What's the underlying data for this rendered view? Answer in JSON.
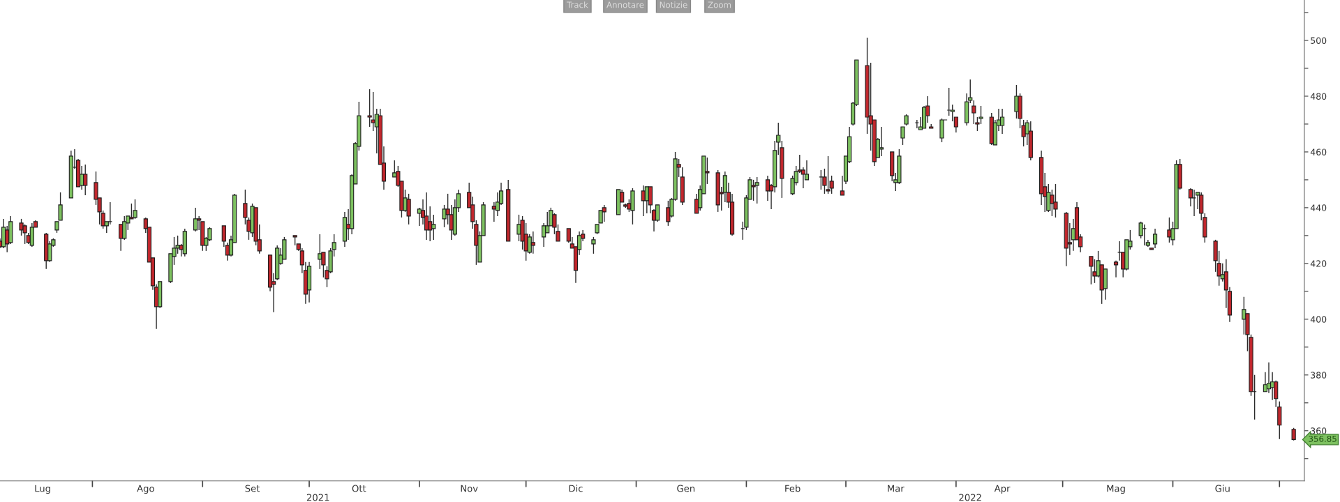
{
  "chart_data": {
    "type": "candlestick",
    "x": [
      "2021-07-06",
      "2021-07-07",
      "2021-07-08",
      "2021-07-09",
      "2021-07-12",
      "2021-07-13",
      "2021-07-14",
      "2021-07-15",
      "2021-07-16",
      "2021-07-19",
      "2021-07-20",
      "2021-07-21",
      "2021-07-22",
      "2021-07-23",
      "2021-07-26",
      "2021-07-27",
      "2021-07-28",
      "2021-07-29",
      "2021-07-30",
      "2021-08-02",
      "2021-08-03",
      "2021-08-04",
      "2021-08-05",
      "2021-08-06",
      "2021-08-09",
      "2021-08-10",
      "2021-08-11",
      "2021-08-12",
      "2021-08-13",
      "2021-08-16",
      "2021-08-17",
      "2021-08-18",
      "2021-08-19",
      "2021-08-20",
      "2021-08-23",
      "2021-08-24",
      "2021-08-25",
      "2021-08-26",
      "2021-08-27",
      "2021-08-30",
      "2021-08-31",
      "2021-09-01",
      "2021-09-02",
      "2021-09-03",
      "2021-09-07",
      "2021-09-08",
      "2021-09-09",
      "2021-09-10",
      "2021-09-13",
      "2021-09-14",
      "2021-09-15",
      "2021-09-16",
      "2021-09-17",
      "2021-09-20",
      "2021-09-21",
      "2021-09-22",
      "2021-09-23",
      "2021-09-24",
      "2021-09-27",
      "2021-09-28",
      "2021-09-29",
      "2021-09-30",
      "2021-10-01",
      "2021-10-04",
      "2021-10-05",
      "2021-10-06",
      "2021-10-07",
      "2021-10-08",
      "2021-10-11",
      "2021-10-12",
      "2021-10-13",
      "2021-10-14",
      "2021-10-15",
      "2021-10-18",
      "2021-10-19",
      "2021-10-20",
      "2021-10-21",
      "2021-10-22",
      "2021-10-25",
      "2021-10-26",
      "2021-10-27",
      "2021-10-28",
      "2021-10-29",
      "2021-11-01",
      "2021-11-02",
      "2021-11-03",
      "2021-11-04",
      "2021-11-05",
      "2021-11-08",
      "2021-11-09",
      "2021-11-10",
      "2021-11-11",
      "2021-11-12",
      "2021-11-15",
      "2021-11-16",
      "2021-11-17",
      "2021-11-18",
      "2021-11-19",
      "2021-11-22",
      "2021-11-23",
      "2021-11-24",
      "2021-11-26",
      "2021-11-29",
      "2021-11-30",
      "2021-12-01",
      "2021-12-02",
      "2021-12-03",
      "2021-12-06",
      "2021-12-07",
      "2021-12-08",
      "2021-12-09",
      "2021-12-10",
      "2021-12-13",
      "2021-12-14",
      "2021-12-15",
      "2021-12-16",
      "2021-12-17",
      "2021-12-20",
      "2021-12-21",
      "2021-12-22",
      "2021-12-23",
      "2021-12-27",
      "2021-12-28",
      "2021-12-29",
      "2021-12-30",
      "2021-12-31",
      "2022-01-03",
      "2022-01-04",
      "2022-01-05",
      "2022-01-06",
      "2022-01-07",
      "2022-01-10",
      "2022-01-11",
      "2022-01-12",
      "2022-01-13",
      "2022-01-14",
      "2022-01-18",
      "2022-01-19",
      "2022-01-20",
      "2022-01-21",
      "2022-01-24",
      "2022-01-25",
      "2022-01-26",
      "2022-01-27",
      "2022-01-28",
      "2022-01-31",
      "2022-02-01",
      "2022-02-02",
      "2022-02-03",
      "2022-02-04",
      "2022-02-07",
      "2022-02-08",
      "2022-02-09",
      "2022-02-10",
      "2022-02-11",
      "2022-02-14",
      "2022-02-15",
      "2022-02-16",
      "2022-02-17",
      "2022-02-18",
      "2022-02-22",
      "2022-02-23",
      "2022-02-24",
      "2022-02-25",
      "2022-02-28",
      "2022-03-01",
      "2022-03-02",
      "2022-03-03",
      "2022-03-04",
      "2022-03-07",
      "2022-03-08",
      "2022-03-09",
      "2022-03-10",
      "2022-03-11",
      "2022-03-14",
      "2022-03-15",
      "2022-03-16",
      "2022-03-17",
      "2022-03-18",
      "2022-03-21",
      "2022-03-22",
      "2022-03-23",
      "2022-03-24",
      "2022-03-25",
      "2022-03-28",
      "2022-03-29",
      "2022-03-30",
      "2022-03-31",
      "2022-04-01",
      "2022-04-04",
      "2022-04-05",
      "2022-04-06",
      "2022-04-07",
      "2022-04-08",
      "2022-04-11",
      "2022-04-12",
      "2022-04-13",
      "2022-04-14",
      "2022-04-18",
      "2022-04-19",
      "2022-04-20",
      "2022-04-21",
      "2022-04-22",
      "2022-04-25",
      "2022-04-26",
      "2022-04-27",
      "2022-04-28",
      "2022-04-29",
      "2022-05-02",
      "2022-05-03",
      "2022-05-04",
      "2022-05-05",
      "2022-05-06",
      "2022-05-09",
      "2022-05-10",
      "2022-05-11",
      "2022-05-12",
      "2022-05-13",
      "2022-05-16",
      "2022-05-17",
      "2022-05-18",
      "2022-05-19",
      "2022-05-20",
      "2022-05-23",
      "2022-05-24",
      "2022-05-25",
      "2022-05-26",
      "2022-05-27",
      "2022-05-31",
      "2022-06-01",
      "2022-06-02",
      "2022-06-03",
      "2022-06-06",
      "2022-06-07",
      "2022-06-08",
      "2022-06-09",
      "2022-06-10",
      "2022-06-13",
      "2022-06-14",
      "2022-06-15",
      "2022-06-16",
      "2022-06-17",
      "2022-06-21",
      "2022-06-22",
      "2022-06-23",
      "2022-06-24",
      "2022-06-27",
      "2022-06-28",
      "2022-06-29",
      "2022-06-30",
      "2022-07-01",
      "2022-07-05"
    ],
    "ohlc": [
      [
        428,
        429,
        425.5,
        426
      ],
      [
        426,
        436,
        425.5,
        433
      ],
      [
        432,
        433.5,
        424,
        427
      ],
      [
        427.5,
        437,
        427,
        435
      ],
      [
        434.5,
        436,
        430,
        432
      ],
      [
        433.5,
        434,
        427,
        431
      ],
      [
        430,
        431,
        427,
        427.5
      ],
      [
        426.5,
        434.5,
        426,
        433
      ],
      [
        435,
        435.5,
        433,
        433
      ],
      [
        430.5,
        431,
        418,
        421
      ],
      [
        421,
        428,
        420.5,
        427
      ],
      [
        426.5,
        429,
        426,
        428.5
      ],
      [
        432,
        435,
        431,
        435
      ],
      [
        435.5,
        445.5,
        435.5,
        441
      ],
      [
        443.5,
        460.5,
        443.5,
        458.5
      ],
      [
        454.5,
        461,
        454,
        454.5
      ],
      [
        457,
        457.5,
        447.5,
        447.5
      ],
      [
        448,
        455,
        446.5,
        452
      ],
      [
        452,
        455.5,
        444.5,
        448
      ],
      [
        449,
        453,
        441,
        443
      ],
      [
        443.5,
        443.5,
        434,
        438.5
      ],
      [
        438,
        439,
        432.5,
        433.5
      ],
      [
        433.5,
        435,
        431,
        435
      ],
      [
        435,
        442,
        434,
        435
      ],
      [
        434,
        434,
        424.5,
        429
      ],
      [
        429,
        437,
        428.5,
        435
      ],
      [
        434.5,
        437,
        432,
        437
      ],
      [
        436.5,
        441.5,
        436,
        436
      ],
      [
        436.5,
        443,
        436,
        439
      ],
      [
        436,
        436.5,
        431,
        432.5
      ],
      [
        433,
        433,
        420.5,
        420.5
      ],
      [
        422,
        422,
        410.5,
        412
      ],
      [
        411.5,
        412.5,
        396.5,
        404.5
      ],
      [
        404.5,
        413.5,
        404,
        413.5
      ],
      [
        413.5,
        423.5,
        413,
        423.5
      ],
      [
        422.5,
        429.5,
        419.5,
        425.5
      ],
      [
        425.5,
        430,
        423.5,
        426.5
      ],
      [
        426.5,
        427,
        422.5,
        425
      ],
      [
        423.5,
        432.5,
        422.5,
        431.5
      ],
      [
        432,
        440,
        431.5,
        436
      ],
      [
        436,
        437,
        432,
        435.5
      ],
      [
        435,
        435,
        424.5,
        426.5
      ],
      [
        426.5,
        429.5,
        424.5,
        429
      ],
      [
        428.5,
        433,
        428,
        432.5
      ],
      [
        433.5,
        433.5,
        426,
        428
      ],
      [
        426.5,
        427.5,
        421,
        423
      ],
      [
        423,
        430,
        422.5,
        428.5
      ],
      [
        427.5,
        445,
        427.5,
        444.5
      ],
      [
        441.5,
        446.5,
        434,
        436.5
      ],
      [
        435.5,
        436.5,
        428.5,
        431.5
      ],
      [
        431,
        441.5,
        429.5,
        440.5
      ],
      [
        440,
        440,
        426.5,
        428
      ],
      [
        428.5,
        434,
        423.5,
        424.5
      ],
      [
        423,
        423,
        410,
        411.5
      ],
      [
        413.5,
        416.5,
        402.5,
        412.5
      ],
      [
        414.5,
        426.5,
        414,
        425.5
      ],
      [
        420,
        425.5,
        419.5,
        423
      ],
      [
        421.5,
        429.5,
        421.5,
        428.5
      ],
      [
        430,
        430,
        426.5,
        429.5
      ],
      [
        427,
        427,
        424.5,
        425
      ],
      [
        424.5,
        425.5,
        416.5,
        419.5
      ],
      [
        417.5,
        420.5,
        405.5,
        409
      ],
      [
        410.5,
        420.5,
        406,
        419
      ],
      [
        421.5,
        430.5,
        418,
        423.5
      ],
      [
        424,
        424,
        415,
        419.5
      ],
      [
        417.5,
        419,
        411.5,
        414.5
      ],
      [
        417,
        425.5,
        416.5,
        424.5
      ],
      [
        425,
        430.5,
        422.5,
        427.5
      ],
      [
        428,
        438.5,
        426,
        436.5
      ],
      [
        434,
        439.5,
        428.5,
        432.5
      ],
      [
        432.5,
        452,
        430.5,
        451.5
      ],
      [
        448.5,
        463.5,
        448.5,
        463
      ],
      [
        462,
        478,
        460.5,
        473
      ],
      [
        473,
        482.5,
        469,
        472.5
      ],
      [
        471.5,
        481.5,
        467.5,
        470.5
      ],
      [
        469,
        475.5,
        459.5,
        473.5
      ],
      [
        473,
        475.5,
        455.5,
        455.5
      ],
      [
        456,
        462,
        446.5,
        449.5
      ],
      [
        451,
        457,
        451,
        452.5
      ],
      [
        453,
        455,
        447.5,
        448
      ],
      [
        449.5,
        449.5,
        436.5,
        439
      ],
      [
        439,
        446.5,
        438.5,
        443.5
      ],
      [
        443,
        445,
        434,
        437
      ],
      [
        438,
        440,
        433.5,
        439.5
      ],
      [
        439,
        443,
        434,
        436.5
      ],
      [
        437,
        445.5,
        428.5,
        432
      ],
      [
        435,
        440.5,
        428,
        432
      ],
      [
        432.5,
        437.5,
        428.5,
        434
      ],
      [
        436,
        441,
        433,
        439.5
      ],
      [
        439.5,
        445,
        434,
        437.5
      ],
      [
        437.5,
        441,
        428.5,
        432
      ],
      [
        430.5,
        443,
        430,
        440
      ],
      [
        440,
        446.5,
        438.5,
        445
      ],
      [
        445.5,
        449,
        440,
        440
      ],
      [
        441,
        444,
        432.5,
        435
      ],
      [
        434,
        435.5,
        419.5,
        426.5
      ],
      [
        420.5,
        431.5,
        420.5,
        430
      ],
      [
        430,
        442,
        430,
        441
      ],
      [
        440.5,
        442,
        435,
        439.5
      ],
      [
        439,
        445.5,
        437,
        442
      ],
      [
        441.5,
        449,
        441,
        446
      ],
      [
        446.5,
        450,
        428,
        428
      ],
      [
        430.5,
        437.5,
        428,
        434
      ],
      [
        435.5,
        437,
        425,
        428
      ],
      [
        430.5,
        434.5,
        421,
        424.5
      ],
      [
        424,
        430.5,
        423.5,
        429.5
      ],
      [
        427.5,
        431.5,
        423.5,
        426.5
      ],
      [
        429.5,
        434.5,
        426,
        433.5
      ],
      [
        431,
        438.5,
        431,
        433.5
      ],
      [
        433.5,
        440,
        433.5,
        439
      ],
      [
        437.5,
        438,
        430.5,
        433
      ],
      [
        431.5,
        434,
        428,
        428
      ],
      [
        432.5,
        432.5,
        427.5,
        428
      ],
      [
        427,
        429.5,
        425.5,
        425.5
      ],
      [
        426,
        426,
        413,
        417.5
      ],
      [
        425,
        431.5,
        423,
        430
      ],
      [
        430.5,
        432,
        428,
        429
      ],
      [
        427,
        429.5,
        423.5,
        428.5
      ],
      [
        431,
        434,
        430.5,
        434
      ],
      [
        434.5,
        439,
        434.5,
        439
      ],
      [
        440,
        441,
        435,
        438.5
      ],
      [
        437.5,
        446.5,
        437.5,
        446.5
      ],
      [
        445.5,
        446.5,
        442,
        442
      ],
      [
        441,
        441.5,
        440,
        440.5
      ],
      [
        441.5,
        443,
        438.5,
        439.5
      ],
      [
        439,
        447,
        434,
        446
      ],
      [
        446,
        448,
        437,
        442.5
      ],
      [
        442.5,
        447.5,
        438,
        447.5
      ],
      [
        447.5,
        447.5,
        438,
        441
      ],
      [
        439,
        439.5,
        431.5,
        435.5
      ],
      [
        435.5,
        441,
        435,
        441
      ],
      [
        440,
        442.5,
        433.5,
        435
      ],
      [
        437,
        443.5,
        436.5,
        443
      ],
      [
        443,
        460,
        442.5,
        457.5
      ],
      [
        455.5,
        457.5,
        451,
        454.5
      ],
      [
        451,
        454.5,
        441,
        442
      ],
      [
        443,
        445,
        438,
        438
      ],
      [
        440,
        448,
        439,
        446.5
      ],
      [
        445,
        458.5,
        445,
        458.5
      ],
      [
        453,
        458,
        448.5,
        452.5
      ],
      [
        452.5,
        453.5,
        438.5,
        441
      ],
      [
        445.5,
        447.5,
        439,
        445
      ],
      [
        445.5,
        453,
        442,
        451.5
      ],
      [
        445.5,
        449,
        440,
        442
      ],
      [
        442,
        445,
        430,
        430.5
      ],
      [
        432.5,
        435,
        428.5,
        432.5
      ],
      [
        433,
        444.5,
        432,
        443.5
      ],
      [
        443,
        451,
        443,
        450
      ],
      [
        448,
        450,
        442.5,
        447.5
      ],
      [
        448,
        451,
        441.5,
        449
      ],
      [
        450,
        451.5,
        442.5,
        446
      ],
      [
        448,
        448.5,
        439.5,
        446
      ],
      [
        447.5,
        464,
        445.5,
        460.5
      ],
      [
        463.5,
        470.5,
        459,
        466
      ],
      [
        461.5,
        464,
        443.5,
        450.5
      ],
      [
        445,
        451.5,
        444.5,
        450.5
      ],
      [
        449,
        455,
        448,
        453
      ],
      [
        453.5,
        459,
        452.5,
        453
      ],
      [
        453.5,
        454.5,
        447,
        452
      ],
      [
        450,
        457,
        450,
        452
      ],
      [
        451,
        453.5,
        446.5,
        451
      ],
      [
        451,
        454,
        445,
        448
      ],
      [
        446.5,
        458.5,
        445,
        446
      ],
      [
        449.5,
        451.5,
        445,
        447
      ],
      [
        446,
        451.5,
        444.5,
        444.5
      ],
      [
        449.5,
        458.5,
        448.5,
        458.5
      ],
      [
        456.5,
        469,
        456,
        465.5
      ],
      [
        470,
        478,
        469.5,
        477.5
      ],
      [
        477,
        493,
        476.5,
        493
      ],
      [
        491,
        501,
        466.5,
        472.5
      ],
      [
        473,
        492,
        460.5,
        470
      ],
      [
        471.5,
        471.5,
        455,
        456.5
      ],
      [
        458,
        465,
        458,
        464.5
      ],
      [
        461,
        469,
        458.5,
        461.5
      ],
      [
        460,
        460,
        449.5,
        451.5
      ],
      [
        449,
        452.5,
        446,
        450
      ],
      [
        449,
        461,
        448.5,
        458.5
      ],
      [
        465,
        469,
        462.5,
        469
      ],
      [
        470,
        473.5,
        469.5,
        473
      ],
      [
        470.5,
        471.5,
        468.5,
        470.5
      ],
      [
        468,
        472.5,
        468,
        469
      ],
      [
        468.5,
        476.5,
        468.5,
        476
      ],
      [
        476.5,
        480,
        470.5,
        473
      ],
      [
        469,
        470,
        468.5,
        468.5
      ],
      [
        465,
        472,
        463.5,
        471.5
      ],
      [
        471.5,
        471.5,
        471.5,
        471.5
      ],
      [
        475,
        483,
        473,
        475
      ],
      [
        474.5,
        477,
        471,
        475
      ],
      [
        472.5,
        472.5,
        467,
        469
      ],
      [
        470.5,
        481,
        469.5,
        478
      ],
      [
        478.5,
        486,
        477.5,
        479.5
      ],
      [
        476.5,
        478.5,
        470,
        474
      ],
      [
        470.5,
        472.5,
        467.5,
        470
      ],
      [
        472,
        476.5,
        470,
        472.5
      ],
      [
        472.5,
        474,
        462.5,
        463
      ],
      [
        462.5,
        471.5,
        462.5,
        470.5
      ],
      [
        469.5,
        475.5,
        467.5,
        471.5
      ],
      [
        469.5,
        475.5,
        466.5,
        472.5
      ],
      [
        474.5,
        484,
        472,
        480
      ],
      [
        480,
        481,
        468.5,
        472
      ],
      [
        469.5,
        471.5,
        462,
        465.5
      ],
      [
        466.5,
        471.5,
        462.5,
        470.5
      ],
      [
        467.5,
        471,
        457,
        458
      ],
      [
        458,
        460.5,
        441,
        445
      ],
      [
        447.5,
        452.5,
        438.5,
        444
      ],
      [
        439,
        448.5,
        438.5,
        445.5
      ],
      [
        444.5,
        446.5,
        437,
        441.5
      ],
      [
        442,
        448.5,
        436.5,
        439.5
      ],
      [
        438,
        438.5,
        419,
        425.5
      ],
      [
        427.5,
        434.5,
        423,
        427
      ],
      [
        428.5,
        436,
        424.5,
        432.5
      ],
      [
        440,
        442,
        428.5,
        428.5
      ],
      [
        429.5,
        430.5,
        424,
        426
      ],
      [
        422.5,
        422.5,
        412.5,
        419
      ],
      [
        417,
        421.5,
        413,
        415.5
      ],
      [
        415.5,
        424.5,
        415,
        421
      ],
      [
        419.5,
        419.5,
        405.5,
        410.5
      ],
      [
        411,
        418,
        407,
        418
      ],
      [
        420.5,
        421,
        415,
        419.5
      ],
      [
        424,
        428,
        421,
        424
      ],
      [
        424,
        424,
        415,
        418
      ],
      [
        418,
        428.5,
        417.5,
        428.5
      ],
      [
        426,
        432,
        425,
        428
      ],
      [
        430,
        435,
        429,
        434.5
      ],
      [
        432.5,
        434,
        426.5,
        432.5
      ],
      [
        426.5,
        428.5,
        426,
        427.5
      ],
      [
        425.5,
        425.5,
        425,
        425
      ],
      [
        427,
        432.5,
        425.5,
        430.5
      ],
      [
        432,
        436.5,
        427.5,
        429.5
      ],
      [
        428.5,
        435,
        426.5,
        432.5
      ],
      [
        432.5,
        457,
        432.5,
        455.5
      ],
      [
        455.5,
        457.5,
        446.5,
        447
      ],
      [
        446.5,
        447,
        440.5,
        443.5
      ],
      [
        443.5,
        446.5,
        437,
        443.5
      ],
      [
        444.5,
        445.5,
        439.5,
        445.5
      ],
      [
        444.5,
        445.5,
        435.5,
        438
      ],
      [
        436.5,
        438,
        427.5,
        429.5
      ],
      [
        428,
        428.5,
        417,
        421
      ],
      [
        420,
        424.5,
        412,
        415.5
      ],
      [
        414.5,
        420,
        413.5,
        416
      ],
      [
        417,
        421.5,
        404,
        410.5
      ],
      [
        410,
        411.5,
        399,
        401.5
      ],
      [
        400,
        408,
        394.5,
        403.5
      ],
      [
        402,
        402,
        388.5,
        394.5
      ],
      [
        393.5,
        394.5,
        372.5,
        374
      ],
      [
        374,
        380,
        364,
        374
      ],
      [
        374,
        381,
        374,
        376.5
      ],
      [
        375,
        384.5,
        373.5,
        377
      ],
      [
        375.5,
        381,
        371,
        377.5
      ],
      [
        377.5,
        378,
        368.5,
        371.5
      ],
      [
        368.5,
        370.5,
        357,
        362
      ],
      [
        360.5,
        361,
        356.5,
        356.85
      ]
    ],
    "xlim": [
      "2021-07-06",
      "2022-07-08"
    ],
    "xticks": [
      {
        "value": "2021-07-18",
        "label": "Lug"
      },
      {
        "value": "2021-08-01",
        "label": null
      },
      {
        "value": "2021-08-16",
        "label": "Ago"
      },
      {
        "value": "2021-09-01",
        "label": null
      },
      {
        "value": "2021-09-15",
        "label": "Set"
      },
      {
        "value": "2021-10-01",
        "label": null
      },
      {
        "value": "2021-10-15",
        "label": "Ott"
      },
      {
        "value": "2021-11-01",
        "label": null
      },
      {
        "value": "2021-11-15",
        "label": "Nov"
      },
      {
        "value": "2021-12-01",
        "label": null
      },
      {
        "value": "2021-12-15",
        "label": "Dic"
      },
      {
        "value": "2022-01-01",
        "label": null
      },
      {
        "value": "2022-01-15",
        "label": "Gen"
      },
      {
        "value": "2022-02-01",
        "label": null
      },
      {
        "value": "2022-02-14",
        "label": "Feb"
      },
      {
        "value": "2022-03-01",
        "label": null
      },
      {
        "value": "2022-03-15",
        "label": "Mar"
      },
      {
        "value": "2022-04-01",
        "label": null
      },
      {
        "value": "2022-04-14",
        "label": "Apr"
      },
      {
        "value": "2022-05-01",
        "label": null
      },
      {
        "value": "2022-05-16",
        "label": "Mag"
      },
      {
        "value": "2022-06-01",
        "label": null
      },
      {
        "value": "2022-06-15",
        "label": "Giu"
      },
      {
        "value": "2022-07-01",
        "label": null
      }
    ],
    "ylim": [
      342,
      514.5
    ],
    "yticks": [
      {
        "value": 350,
        "label": null
      },
      360,
      {
        "value": 370,
        "label": null
      },
      380,
      {
        "value": 390,
        "label": null
      },
      400,
      {
        "value": 410,
        "label": null
      },
      420,
      {
        "value": 430,
        "label": null
      },
      440,
      {
        "value": 450,
        "label": null
      },
      460,
      {
        "value": 470,
        "label": null
      },
      480,
      {
        "value": 490,
        "label": null
      },
      500,
      {
        "value": 510,
        "label": null
      }
    ],
    "grid": false,
    "annotations": [
      "Track",
      "Annotare",
      "Notizie",
      "Zoom",
      "2021",
      "2022",
      "356.85"
    ]
  }
}
